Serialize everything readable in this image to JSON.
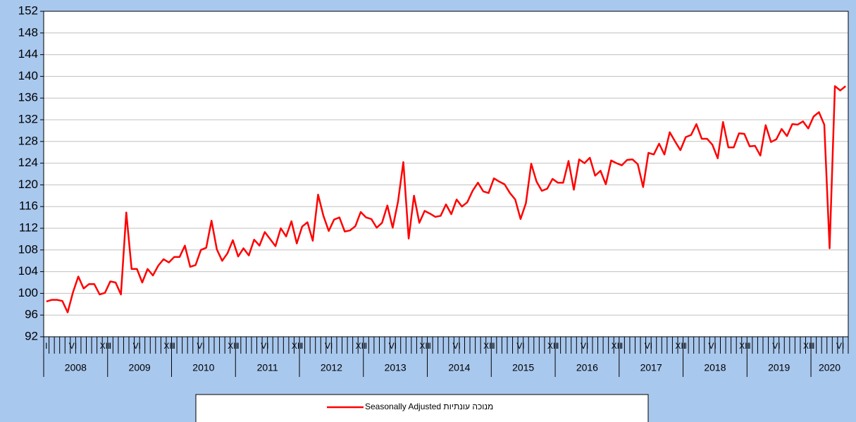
{
  "chart_data": {
    "type": "line",
    "categories": [
      "I",
      null,
      null,
      null,
      null,
      "VI",
      null,
      null,
      null,
      null,
      null,
      "XII",
      "I",
      null,
      null,
      null,
      null,
      "VI",
      null,
      null,
      null,
      null,
      null,
      "XII",
      "I",
      null,
      null,
      null,
      null,
      "VI",
      null,
      null,
      null,
      null,
      null,
      "XII",
      "I",
      null,
      null,
      null,
      null,
      "VI",
      null,
      null,
      null,
      null,
      null,
      "XII",
      "I",
      null,
      null,
      null,
      null,
      "VI",
      null,
      null,
      null,
      null,
      null,
      "XII",
      "I",
      null,
      null,
      null,
      null,
      "VI",
      null,
      null,
      null,
      null,
      null,
      "XII",
      "I",
      null,
      null,
      null,
      null,
      "VI",
      null,
      null,
      null,
      null,
      null,
      "XII",
      "I",
      null,
      null,
      null,
      null,
      "VI",
      null,
      null,
      null,
      null,
      null,
      "XII",
      "I",
      null,
      null,
      null,
      null,
      "VI",
      null,
      null,
      null,
      null,
      null,
      "XII",
      "I",
      null,
      null,
      null,
      null,
      "VI",
      null,
      null,
      null,
      null,
      null,
      "XII",
      "I",
      null,
      null,
      null,
      null,
      "VI",
      null,
      null,
      null,
      null,
      null,
      "XII",
      "I",
      null,
      null,
      null,
      null,
      "VI",
      null,
      null,
      null,
      null,
      null,
      "XII",
      "I",
      null,
      null,
      null,
      null,
      "VI",
      null
    ],
    "years": [
      "2008",
      "2009",
      "2010",
      "2011",
      "2012",
      "2013",
      "2014",
      "2015",
      "2016",
      "2017",
      "2018",
      "2019",
      "2020"
    ],
    "series": [
      {
        "name": "Seasonally Adjusted מנוכה עונתיות",
        "color": "#ff0000",
        "values": [
          98.5,
          98.8,
          98.8,
          98.6,
          96.5,
          100.2,
          103.1,
          100.9,
          101.7,
          101.7,
          99.8,
          100.1,
          102.2,
          102.0,
          99.8,
          114.9,
          104.5,
          104.5,
          102.0,
          104.5,
          103.3,
          105.1,
          106.3,
          105.7,
          106.7,
          106.7,
          108.8,
          104.9,
          105.2,
          108.0,
          108.4,
          113.4,
          108.1,
          106.0,
          107.4,
          109.8,
          106.8,
          108.3,
          107.0,
          109.9,
          108.8,
          111.3,
          110.0,
          108.7,
          112.0,
          110.5,
          113.3,
          109.2,
          112.3,
          113.1,
          109.7,
          118.2,
          114.3,
          111.5,
          113.6,
          114.0,
          111.4,
          111.6,
          112.4,
          115.0,
          114.0,
          113.7,
          112.1,
          113.0,
          116.2,
          112.1,
          116.9,
          124.2,
          110.1,
          118.0,
          113.0,
          115.2,
          114.7,
          114.1,
          114.3,
          116.4,
          114.6,
          117.3,
          116.0,
          116.8,
          118.9,
          120.4,
          118.8,
          118.5,
          121.2,
          120.6,
          120.1,
          118.5,
          117.3,
          113.7,
          116.6,
          123.9,
          120.6,
          118.9,
          119.3,
          121.1,
          120.4,
          120.4,
          124.4,
          119.1,
          124.7,
          124.0,
          125.0,
          121.7,
          122.6,
          120.1,
          124.5,
          124.0,
          123.6,
          124.6,
          124.7,
          123.8,
          119.6,
          125.9,
          125.6,
          127.6,
          125.6,
          129.7,
          128.0,
          126.4,
          128.8,
          129.2,
          131.2,
          128.5,
          128.5,
          127.4,
          124.9,
          131.6,
          126.9,
          126.9,
          129.5,
          129.4,
          127.1,
          127.2,
          125.4,
          131.0,
          127.9,
          128.4,
          130.3,
          129.0,
          131.2,
          131.1,
          131.7,
          130.4,
          132.6,
          133.4,
          131.1,
          108.3,
          138.2,
          137.4,
          138.2
        ]
      }
    ],
    "ylim": [
      92,
      152
    ],
    "yticks": [
      92,
      96,
      100,
      104,
      108,
      112,
      116,
      120,
      124,
      128,
      132,
      136,
      140,
      144,
      148,
      152
    ],
    "grid": true,
    "legend": "bottom"
  }
}
